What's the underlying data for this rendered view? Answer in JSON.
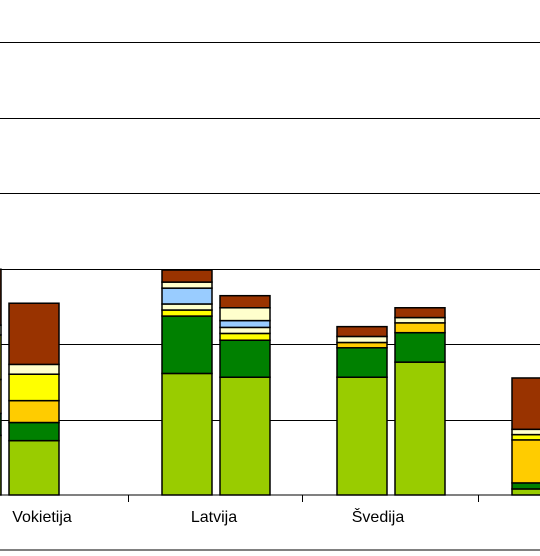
{
  "colors": {
    "axis": "#000000",
    "grid": "#000000",
    "bar_outline": "#000000",
    "background": "#ffffff"
  },
  "chart_data": {
    "type": "bar",
    "stacked": true,
    "title": "",
    "xlabel": "",
    "ylabel": "",
    "grid": true,
    "legend": "none",
    "note": "Cropped view: y-axis tick labels and the legend are outside the visible area. Values are in gridline units (one unit per horizontal gridline).",
    "ylim": [
      0,
      6.4
    ],
    "categories": [
      "Vokietija",
      "Latvija",
      "Švedija",
      ""
    ],
    "series_colors": [
      "#99cc00",
      "#008000",
      "#ffcc00",
      "#ffff00",
      "#ffffcc",
      "#99ccff",
      "#993300"
    ],
    "bars": [
      {
        "category": 0,
        "slot": 1,
        "segments": [
          {
            "color": "#99cc00",
            "value": 0.79
          },
          {
            "color": "#008000",
            "value": 0.29
          },
          {
            "color": "#ffcc00",
            "value": 0.45
          },
          {
            "color": "#ffff00",
            "value": 0.59
          },
          {
            "color": "#ffffcc",
            "value": 0.13
          },
          {
            "color": "#993300",
            "value": 0.74
          }
        ]
      },
      {
        "category": 0,
        "slot": 2,
        "segments": [
          {
            "color": "#99cc00",
            "value": 0.72
          },
          {
            "color": "#008000",
            "value": 0.24
          },
          {
            "color": "#ffcc00",
            "value": 0.29
          },
          {
            "color": "#ffff00",
            "value": 0.35
          },
          {
            "color": "#ffffcc",
            "value": 0.13
          },
          {
            "color": "#993300",
            "value": 0.81
          }
        ]
      },
      {
        "category": 1,
        "slot": 0,
        "segments": [
          {
            "color": "#99cc00",
            "value": 1.61
          },
          {
            "color": "#008000",
            "value": 0.76
          },
          {
            "color": "#ffff00",
            "value": 0.08
          },
          {
            "color": "#ffffcc",
            "value": 0.08
          },
          {
            "color": "#99ccff",
            "value": 0.21
          },
          {
            "color": "#ffffcc",
            "value": 0.08
          },
          {
            "color": "#993300",
            "value": 0.16
          }
        ]
      },
      {
        "category": 1,
        "slot": 1,
        "segments": [
          {
            "color": "#99cc00",
            "value": 1.56
          },
          {
            "color": "#008000",
            "value": 0.49
          },
          {
            "color": "#ffff00",
            "value": 0.09
          },
          {
            "color": "#ffffcc",
            "value": 0.08
          },
          {
            "color": "#99ccff",
            "value": 0.09
          },
          {
            "color": "#ffffcc",
            "value": 0.17
          },
          {
            "color": "#993300",
            "value": 0.16
          }
        ]
      },
      {
        "category": 2,
        "slot": 0,
        "segments": [
          {
            "color": "#99cc00",
            "value": 1.56
          },
          {
            "color": "#008000",
            "value": 0.39
          },
          {
            "color": "#ffcc00",
            "value": 0.07
          },
          {
            "color": "#ffffcc",
            "value": 0.08
          },
          {
            "color": "#993300",
            "value": 0.13
          }
        ]
      },
      {
        "category": 2,
        "slot": 1,
        "segments": [
          {
            "color": "#99cc00",
            "value": 1.76
          },
          {
            "color": "#008000",
            "value": 0.39
          },
          {
            "color": "#ffcc00",
            "value": 0.13
          },
          {
            "color": "#ffffcc",
            "value": 0.07
          },
          {
            "color": "#993300",
            "value": 0.13
          }
        ]
      },
      {
        "category": 3,
        "slot": 0,
        "segments": [
          {
            "color": "#99cc00",
            "value": 0.08
          },
          {
            "color": "#008000",
            "value": 0.08
          },
          {
            "color": "#ffcc00",
            "value": 0.57
          },
          {
            "color": "#ffff00",
            "value": 0.07
          },
          {
            "color": "#ffffcc",
            "value": 0.07
          },
          {
            "color": "#993300",
            "value": 0.68
          }
        ]
      }
    ]
  }
}
